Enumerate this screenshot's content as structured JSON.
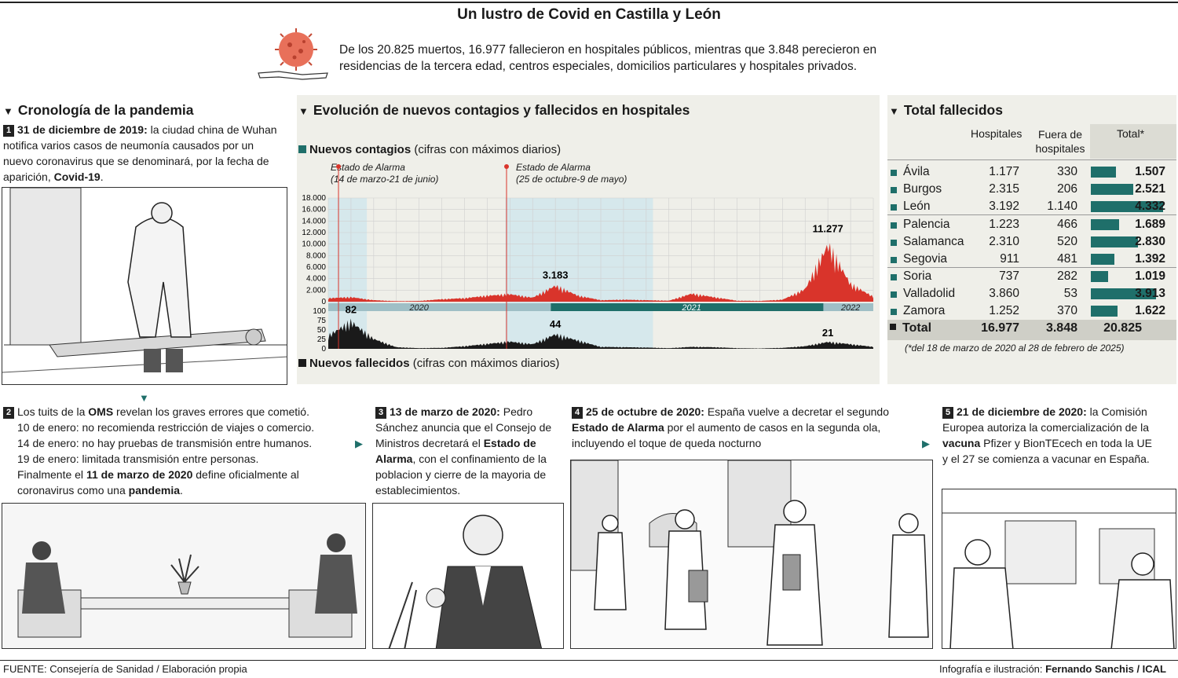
{
  "title": "Un lustro de Covid en Castilla y León",
  "intro": "De los 20.825 muertos, 16.977 fallecieron en hospitales públicos, mientras que 3.848 perecieron en residencias de la tercera edad, centros especiales, domicilios particulares y hospitales privados.",
  "cronologia": {
    "heading": "Cronología de la pandemia",
    "items": [
      {
        "num": "1",
        "lead": "31 de diciembre de 2019:",
        "text": " la ciudad china de Wuhan notifica varios casos de neumonía causados por un nuevo coronavirus que se denominará, por la fecha de aparición, ",
        "bold_end": "Covid-19",
        "end": "."
      },
      {
        "num": "2",
        "pre": "Los tuits de la ",
        "bold": "OMS",
        "text": " revelan los graves errores que cometió.",
        "lines": [
          "10 de enero: no recomienda restricción de viajes o comercio.",
          "14 de enero: no hay pruebas de transmisión entre humanos.",
          "19 de enero: limitada transmisión entre personas."
        ],
        "fin_pre": "Finalmente el ",
        "fin_bold": "11 de marzo de 2020",
        "fin_mid": " define oficialmente al coronavirus como una ",
        "fin_bold2": "pandemia",
        "fin_end": "."
      },
      {
        "num": "3",
        "lead": "13 de marzo de 2020:",
        "text": " Pedro Sánchez anuncia que el Consejo de Ministros decretará el ",
        "bold_mid": "Estado de Alarma",
        "end": ", con el confinamiento de la poblacion y cierre de la mayoria de establecimientos."
      },
      {
        "num": "4",
        "lead": "25 de octubre de 2020:",
        "text": " España vuelve a decretar el segundo ",
        "bold_mid": "Estado de Alarma",
        "end": " por el aumento de casos en la segunda ola, incluyendo el toque de queda nocturno"
      },
      {
        "num": "5",
        "lead": "21 de diciembre de 2020:",
        "text": " la Comisión Europea autoriza la comercialización de la ",
        "bold_mid": "vacuna",
        "end": " Pfizer y BionTEcech en toda la UE y el 27 se comienza a vacunar en España."
      }
    ]
  },
  "evolucion": {
    "heading": "Evolución de nuevos contagios y fallecidos en hospitales",
    "contagios_label": "Nuevos contagios",
    "contagios_note": " (cifras con máximos diarios)",
    "fallecidos_label": "Nuevos fallecidos",
    "fallecidos_note": " (cifras con máximos diarios)",
    "alarma1_title": "Estado de Alarma",
    "alarma1_dates": "(14 de marzo-21 de junio)",
    "alarma2_title": "Estado de Alarma",
    "alarma2_dates": "(25 de octubre-9 de mayo)",
    "years": [
      "2020",
      "2021",
      "2022"
    ]
  },
  "chart_data": [
    {
      "type": "area",
      "series": [
        {
          "name": "Nuevos contagios",
          "color": "#d9342b"
        }
      ],
      "yticks": [
        "18.000",
        "16.000",
        "14.000",
        "12.000",
        "10.000",
        "8.000",
        "6.000",
        "4.000",
        "2.000",
        "0"
      ],
      "ylim": [
        0,
        18000
      ],
      "peaks": [
        {
          "label": "3.183",
          "value": 3183,
          "period": "enero 2021"
        },
        {
          "label": "11.277",
          "value": 11277,
          "period": "enero 2022"
        }
      ],
      "x": [
        "2020-03",
        "2020-04",
        "2020-05",
        "2020-06",
        "2020-07",
        "2020-08",
        "2020-09",
        "2020-10",
        "2020-11",
        "2020-12",
        "2021-01",
        "2021-02",
        "2021-03",
        "2021-04",
        "2021-05",
        "2021-06",
        "2021-07",
        "2021-08",
        "2021-09",
        "2021-10",
        "2021-11",
        "2021-12",
        "2022-01",
        "2022-02",
        "2022-03"
      ],
      "values": [
        700,
        900,
        300,
        100,
        150,
        500,
        700,
        1200,
        1500,
        800,
        3183,
        1200,
        300,
        400,
        300,
        200,
        1600,
        900,
        200,
        150,
        400,
        2500,
        11277,
        3500,
        1000
      ]
    },
    {
      "type": "area",
      "series": [
        {
          "name": "Nuevos fallecidos",
          "color": "#1a1a1a"
        }
      ],
      "yticks": [
        "100",
        "75",
        "50",
        "25",
        "0"
      ],
      "ylim": [
        0,
        100
      ],
      "peaks": [
        {
          "label": "82",
          "value": 82,
          "period": "abril 2020"
        },
        {
          "label": "44",
          "value": 44,
          "period": "enero 2021"
        },
        {
          "label": "21",
          "value": 21,
          "period": "enero 2022"
        }
      ],
      "x": [
        "2020-03",
        "2020-04",
        "2020-05",
        "2020-06",
        "2020-07",
        "2020-08",
        "2020-09",
        "2020-10",
        "2020-11",
        "2020-12",
        "2021-01",
        "2021-02",
        "2021-03",
        "2021-04",
        "2021-05",
        "2021-06",
        "2021-07",
        "2021-08",
        "2021-09",
        "2021-10",
        "2021-11",
        "2021-12",
        "2022-01",
        "2022-02",
        "2022-03"
      ],
      "values": [
        40,
        82,
        30,
        5,
        2,
        3,
        8,
        15,
        22,
        14,
        44,
        25,
        6,
        5,
        4,
        2,
        6,
        5,
        2,
        1,
        3,
        8,
        21,
        14,
        6
      ]
    },
    {
      "type": "bar",
      "title": "Total fallecidos",
      "headers": [
        "Hospitales",
        "Fuera de hospitales",
        "Total*"
      ],
      "rows": [
        {
          "name": "Ávila",
          "hospitales": "1.177",
          "fuera": "330",
          "total": "1.507",
          "value": 1507
        },
        {
          "name": "Burgos",
          "hospitales": "2.315",
          "fuera": "206",
          "total": "2.521",
          "value": 2521
        },
        {
          "name": "León",
          "hospitales": "3.192",
          "fuera": "1.140",
          "total": "4.332",
          "value": 4332
        },
        {
          "name": "Palencia",
          "hospitales": "1.223",
          "fuera": "466",
          "total": "1.689",
          "value": 1689
        },
        {
          "name": "Salamanca",
          "hospitales": "2.310",
          "fuera": "520",
          "total": "2.830",
          "value": 2830
        },
        {
          "name": "Segovia",
          "hospitales": "911",
          "fuera": "481",
          "total": "1.392",
          "value": 1392
        },
        {
          "name": "Soria",
          "hospitales": "737",
          "fuera": "282",
          "total": "1.019",
          "value": 1019
        },
        {
          "name": "Valladolid",
          "hospitales": "3.860",
          "fuera": "53",
          "total": "3.913",
          "value": 3913
        },
        {
          "name": "Zamora",
          "hospitales": "1.252",
          "fuera": "370",
          "total": "1.622",
          "value": 1622
        }
      ],
      "total_row": {
        "name": "Total",
        "hospitales": "16.977",
        "fuera": "3.848",
        "total": "20.825"
      },
      "note": "(*del 18 de marzo de 2020 al 28 de febrero de 2025)",
      "bar_color": "#1f6f6a"
    }
  ],
  "footer": {
    "source": "FUENTE: Consejería de Sanidad / Elaboración propia",
    "credit_pre": "Infografía e ilustración: ",
    "credit_bold": "Fernando Sanchis / ICAL"
  }
}
